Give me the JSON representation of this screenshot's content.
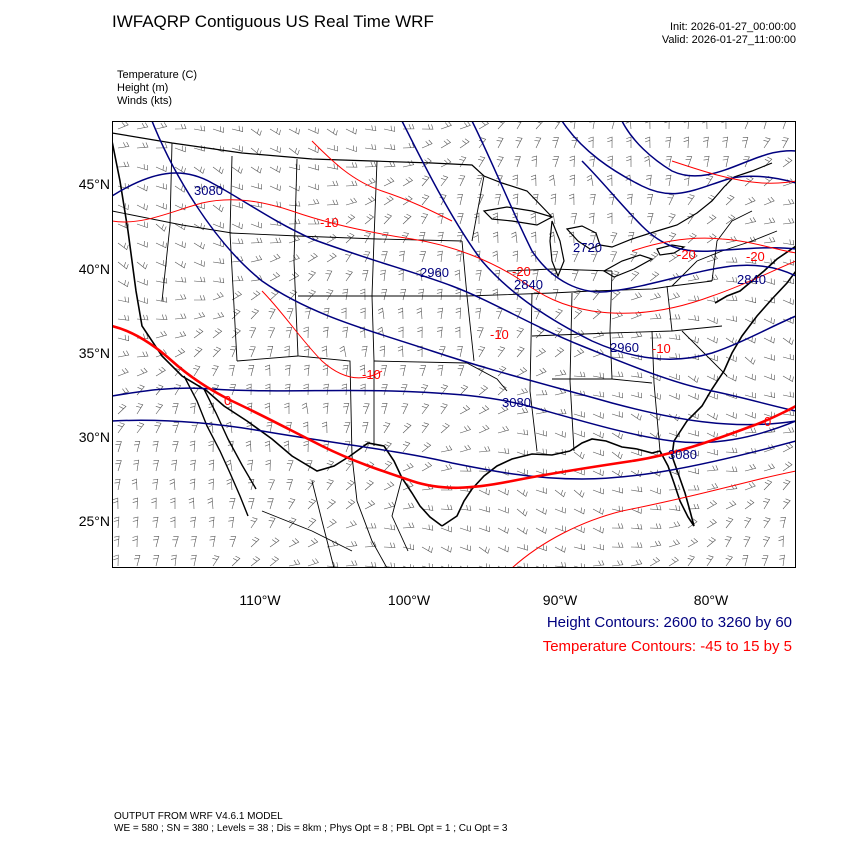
{
  "header": {
    "title": "IWFAQRP Contiguous US Real Time WRF",
    "init": "Init: 2026-01-27_00:00:00",
    "valid": "Valid: 2026-01-27_11:00:00"
  },
  "fields": [
    "Temperature   (C)",
    "Height   (m)",
    "Winds   (kts)"
  ],
  "axes": {
    "lat_labels": [
      "45°N",
      "40°N",
      "35°N",
      "30°N",
      "25°N"
    ],
    "lon_labels": [
      "110°W",
      "100°W",
      "90°W",
      "80°W"
    ]
  },
  "contour_labels": {
    "height": [
      "3080",
      "2960",
      "2840",
      "2720",
      "2840",
      "2960",
      "3080",
      "3080"
    ],
    "temperature": [
      "-10",
      "-20",
      "-10",
      "-20",
      "-20",
      "-10",
      "0",
      "0",
      "-10"
    ]
  },
  "legend": {
    "height": "Height Contours: 2600 to 3260 by 60",
    "temperature": "Temperature Contours: -45 to 15 by 5"
  },
  "footer": {
    "line1": "OUTPUT FROM WRF V4.6.1 MODEL",
    "line2": "WE = 580 ; SN = 380 ; Levels = 38 ; Dis = 8km ; Phys Opt = 8 ; PBL Opt = 1 ; Cu Opt = 3"
  },
  "colors": {
    "height": "#00007f",
    "temperature": "#ff0000",
    "borders": "#000000"
  }
}
